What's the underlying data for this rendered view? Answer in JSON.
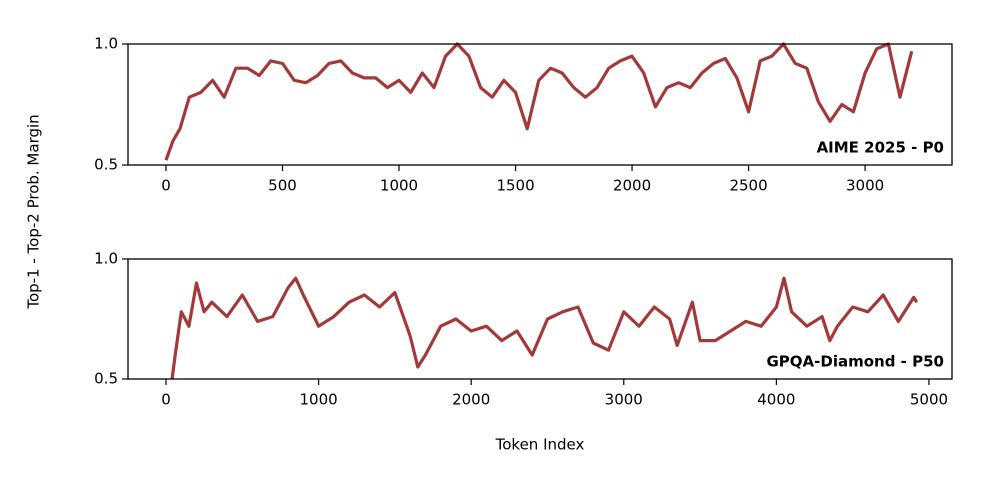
{
  "chart_data": [
    {
      "type": "line",
      "ylabel": "Top-1 - Top-2 Prob. Margin",
      "annotation": "AIME 2025 - P0",
      "xlim": [
        -163,
        3373
      ],
      "ylim": [
        0.5,
        1.0
      ],
      "xticks": [
        0,
        500,
        1000,
        1500,
        2000,
        2500,
        3000
      ],
      "yticks": [
        0.5,
        {
          "value": 1,
          "label": "1.0"
        }
      ],
      "series": [
        {
          "color": "#a33a3a",
          "x": [
            0,
            30,
            60,
            100,
            150,
            200,
            250,
            300,
            350,
            400,
            450,
            500,
            550,
            600,
            650,
            700,
            750,
            800,
            850,
            900,
            950,
            1000,
            1050,
            1100,
            1150,
            1200,
            1250,
            1300,
            1350,
            1400,
            1450,
            1500,
            1550,
            1600,
            1650,
            1700,
            1750,
            1800,
            1850,
            1900,
            1950,
            2000,
            2050,
            2100,
            2150,
            2200,
            2250,
            2300,
            2350,
            2400,
            2450,
            2500,
            2550,
            2600,
            2650,
            2700,
            2750,
            2800,
            2850,
            2900,
            2950,
            3000,
            3050,
            3100,
            3150,
            3200
          ],
          "values": [
            0.52,
            0.6,
            0.65,
            0.78,
            0.8,
            0.85,
            0.78,
            0.9,
            0.9,
            0.87,
            0.93,
            0.92,
            0.85,
            0.84,
            0.87,
            0.92,
            0.93,
            0.88,
            0.86,
            0.86,
            0.82,
            0.85,
            0.8,
            0.88,
            0.82,
            0.95,
            1.0,
            0.95,
            0.82,
            0.78,
            0.85,
            0.8,
            0.65,
            0.85,
            0.9,
            0.88,
            0.82,
            0.78,
            0.82,
            0.9,
            0.93,
            0.95,
            0.88,
            0.74,
            0.82,
            0.84,
            0.82,
            0.88,
            0.92,
            0.94,
            0.86,
            0.72,
            0.93,
            0.95,
            1.0,
            0.92,
            0.9,
            0.76,
            0.68,
            0.75,
            0.72,
            0.88,
            0.98,
            1.0,
            0.78,
            0.97
          ]
        }
      ]
    },
    {
      "type": "line",
      "xlabel": "Token Index",
      "annotation": "GPQA-Diamond - P50",
      "xlim": [
        -249,
        5151
      ],
      "ylim": [
        0.5,
        1.0
      ],
      "xticks": [
        0,
        1000,
        2000,
        3000,
        4000,
        5000
      ],
      "yticks": [
        0.5,
        {
          "value": 1,
          "label": "1.0"
        }
      ],
      "series": [
        {
          "color": "#a33a3a",
          "x": [
            40,
            60,
            100,
            150,
            200,
            250,
            300,
            400,
            500,
            600,
            700,
            800,
            850,
            900,
            1000,
            1100,
            1200,
            1300,
            1400,
            1500,
            1600,
            1650,
            1700,
            1800,
            1900,
            2000,
            2100,
            2200,
            2300,
            2400,
            2500,
            2600,
            2700,
            2800,
            2900,
            3000,
            3100,
            3200,
            3300,
            3350,
            3450,
            3500,
            3600,
            3700,
            3800,
            3900,
            4000,
            4050,
            4100,
            4200,
            4300,
            4350,
            4400,
            4500,
            4600,
            4700,
            4800,
            4900,
            4920
          ],
          "values": [
            0.5,
            0.6,
            0.78,
            0.72,
            0.9,
            0.78,
            0.82,
            0.76,
            0.85,
            0.74,
            0.76,
            0.88,
            0.92,
            0.85,
            0.72,
            0.76,
            0.82,
            0.85,
            0.8,
            0.86,
            0.68,
            0.55,
            0.6,
            0.72,
            0.75,
            0.7,
            0.72,
            0.66,
            0.7,
            0.6,
            0.75,
            0.78,
            0.8,
            0.65,
            0.62,
            0.78,
            0.72,
            0.8,
            0.75,
            0.64,
            0.82,
            0.66,
            0.66,
            0.7,
            0.74,
            0.72,
            0.8,
            0.92,
            0.78,
            0.72,
            0.76,
            0.66,
            0.72,
            0.8,
            0.78,
            0.85,
            0.74,
            0.84,
            0.82
          ]
        }
      ]
    }
  ]
}
